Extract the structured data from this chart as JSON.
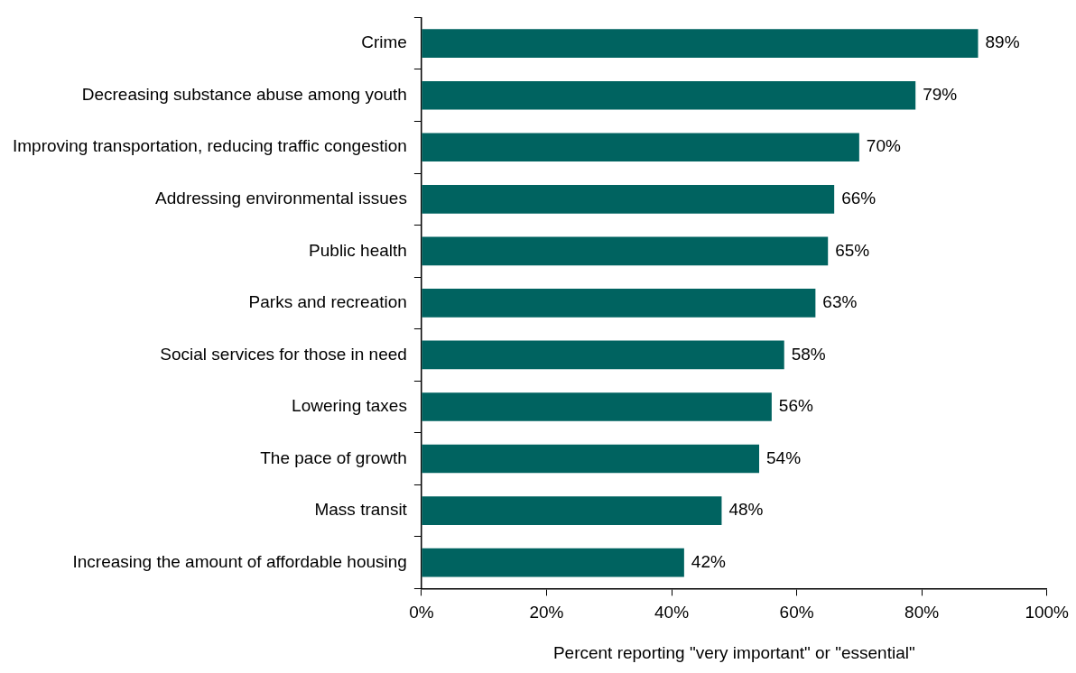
{
  "chart_data": {
    "type": "bar",
    "orientation": "horizontal",
    "xlabel": "Percent reporting \"very important\" or \"essential\"",
    "categories": [
      "Crime",
      "Decreasing substance abuse among youth",
      "Improving transportation, reducing traffic congestion",
      "Addressing environmental issues",
      "Public health",
      "Parks and recreation",
      "Social services for those in need",
      "Lowering taxes",
      "The pace of growth",
      "Mass transit",
      "Increasing the amount of affordable housing"
    ],
    "values": [
      89,
      79,
      70,
      66,
      65,
      63,
      58,
      56,
      54,
      48,
      42
    ],
    "value_labels": [
      "89%",
      "79%",
      "70%",
      "66%",
      "65%",
      "63%",
      "58%",
      "56%",
      "54%",
      "48%",
      "42%"
    ],
    "color": "#006360",
    "xlim": [
      0,
      100
    ],
    "xticks": [
      {
        "value": 0,
        "label": "0%"
      },
      {
        "value": 20,
        "label": "20%"
      },
      {
        "value": 40,
        "label": "40%"
      },
      {
        "value": 60,
        "label": "60%"
      },
      {
        "value": 80,
        "label": "80%"
      },
      {
        "value": 100,
        "label": "100%"
      }
    ],
    "grid": false,
    "legend": false
  }
}
